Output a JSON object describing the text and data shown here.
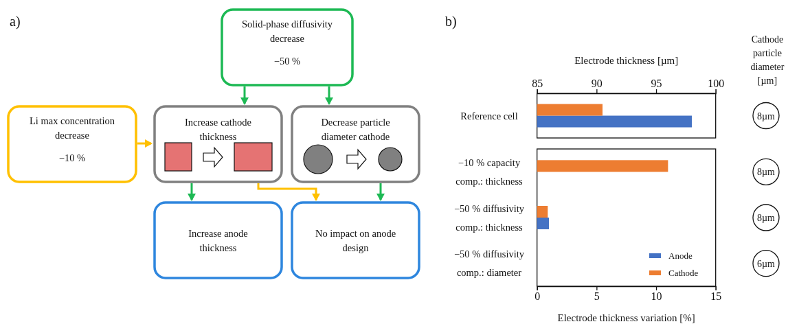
{
  "chart_data": [
    {
      "type": "other",
      "title": "a)",
      "annotations": [
        "Solid-phase diffusivity decrease",
        "−50 %",
        "Li max concentration decrease",
        "−10 %",
        "Increase cathode thickness",
        "Decrease particle diameter cathode",
        "Increase anode thickness",
        "No impact on anode design"
      ]
    },
    {
      "type": "bar",
      "orientation": "horizontal",
      "title": "b)",
      "xlabel": "Electrode thickness [µm]",
      "xlim": [
        85,
        100
      ],
      "xticks": [
        85,
        90,
        95,
        100
      ],
      "categories": [
        "Reference cell"
      ],
      "series": [
        {
          "color": "#4472c4",
          "values": [
            98
          ]
        },
        {
          "color": "#ed7d31",
          "values": [
            90.5
          ]
        }
      ],
      "annotations": [
        "Cathode particle diameter [µm]",
        "8µm"
      ]
    },
    {
      "type": "bar",
      "orientation": "horizontal",
      "xlabel": "Electrode thickness variation [%]",
      "xlim": [
        0,
        15
      ],
      "xticks": [
        0,
        5,
        10,
        15
      ],
      "categories": [
        "−10 % capacity comp.: thickness",
        "−50 % diffusivity comp.: thickness",
        "−50 % diffusivity comp.: diameter"
      ],
      "series": [
        {
          "name": "Anode",
          "color": "#4472c4",
          "values": [
            0,
            1.0,
            0
          ]
        },
        {
          "name": "Cathode",
          "color": "#ed7d31",
          "values": [
            11,
            0.9,
            0
          ]
        }
      ],
      "legend": "bottom right",
      "annotations": [
        "8µm",
        "8µm",
        "6µm"
      ]
    }
  ]
}
